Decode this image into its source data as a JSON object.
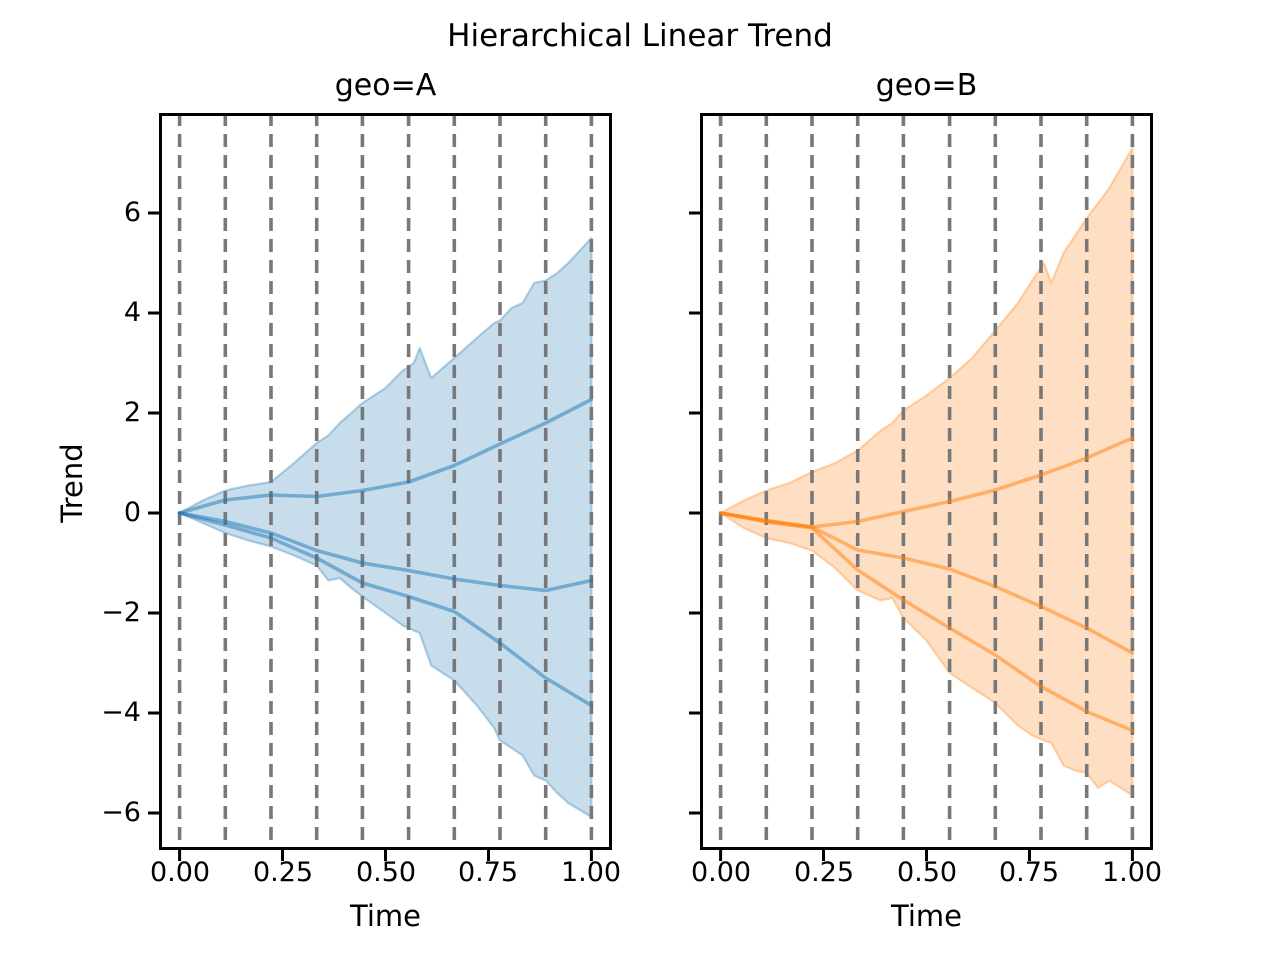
{
  "figure": {
    "suptitle": "Hierarchical Linear Trend",
    "background_color": "#ffffff",
    "grid_color": "#787878",
    "spine_color": "#000000"
  },
  "chart_data": [
    {
      "type": "area",
      "title": "geo=A",
      "xlabel": "Time",
      "ylabel": "Trend",
      "color": "#1f77b4",
      "fill_alpha": 0.25,
      "line_alpha": 0.5,
      "xlim": [
        -0.05,
        1.05
      ],
      "ylim": [
        -6.74,
        8.0
      ],
      "grid": "vertical-dashed",
      "legend": "none",
      "xticks": {
        "values": [
          0,
          0.25,
          0.5,
          0.75,
          1.0
        ],
        "labels": [
          "0.00",
          "0.25",
          "0.50",
          "0.75",
          "1.00"
        ],
        "show_labels": true
      },
      "yticks": {
        "values": [
          -6,
          -4,
          -2,
          0,
          2,
          4,
          6
        ],
        "labels": [
          "−6",
          "−4",
          "−2",
          "0",
          "2",
          "4",
          "6"
        ],
        "show_labels": true
      },
      "changepoints": [
        0,
        0.111,
        0.222,
        0.333,
        0.444,
        0.556,
        0.667,
        0.778,
        0.889,
        1.0
      ],
      "band": {
        "t": [
          0,
          0.056,
          0.111,
          0.167,
          0.222,
          0.278,
          0.333,
          0.361,
          0.389,
          0.417,
          0.444,
          0.5,
          0.542,
          0.569,
          0.583,
          0.611,
          0.667,
          0.722,
          0.764,
          0.778,
          0.806,
          0.833,
          0.861,
          0.889,
          0.917,
          0.944,
          1.0
        ],
        "upper": [
          0,
          0.25,
          0.45,
          0.55,
          0.62,
          1.0,
          1.4,
          1.55,
          1.8,
          2.0,
          2.2,
          2.5,
          2.85,
          3.0,
          3.3,
          2.7,
          3.1,
          3.5,
          3.8,
          3.85,
          4.1,
          4.2,
          4.6,
          4.65,
          4.8,
          5.0,
          5.5
        ],
        "lower": [
          0,
          -0.2,
          -0.4,
          -0.55,
          -0.67,
          -0.85,
          -1.05,
          -1.35,
          -1.3,
          -1.5,
          -1.67,
          -2.0,
          -2.25,
          -2.35,
          -2.4,
          -3.05,
          -3.35,
          -3.85,
          -4.3,
          -4.55,
          -4.7,
          -4.85,
          -5.25,
          -5.35,
          -5.6,
          -5.8,
          -6.08
        ]
      },
      "lines": [
        {
          "name": "sample-1",
          "t": [
            0,
            0.111,
            0.222,
            0.333,
            0.444,
            0.556,
            0.667,
            0.778,
            0.889,
            1.0
          ],
          "y": [
            0,
            0.26,
            0.36,
            0.33,
            0.45,
            0.62,
            0.95,
            1.38,
            1.8,
            2.27
          ]
        },
        {
          "name": "sample-2",
          "t": [
            0,
            0.111,
            0.222,
            0.333,
            0.444,
            0.556,
            0.667,
            0.778,
            0.889,
            1.0
          ],
          "y": [
            0,
            -0.17,
            -0.4,
            -0.75,
            -1.0,
            -1.15,
            -1.32,
            -1.45,
            -1.55,
            -1.35
          ]
        },
        {
          "name": "sample-3",
          "t": [
            0,
            0.111,
            0.222,
            0.333,
            0.444,
            0.556,
            0.667,
            0.778,
            0.889,
            1.0
          ],
          "y": [
            0,
            -0.24,
            -0.5,
            -0.9,
            -1.4,
            -1.67,
            -1.97,
            -2.6,
            -3.3,
            -3.85
          ]
        }
      ]
    },
    {
      "type": "area",
      "title": "geo=B",
      "xlabel": "Time",
      "ylabel": "",
      "color": "#ff7f0e",
      "fill_alpha": 0.25,
      "line_alpha": 0.5,
      "xlim": [
        -0.05,
        1.05
      ],
      "ylim": [
        -6.74,
        8.0
      ],
      "grid": "vertical-dashed",
      "legend": "none",
      "xticks": {
        "values": [
          0,
          0.25,
          0.5,
          0.75,
          1.0
        ],
        "labels": [
          "0.00",
          "0.25",
          "0.50",
          "0.75",
          "1.00"
        ],
        "show_labels": true
      },
      "yticks": {
        "values": [
          -6,
          -4,
          -2,
          0,
          2,
          4,
          6
        ],
        "labels": [
          "−6",
          "−4",
          "−2",
          "0",
          "2",
          "4",
          "6"
        ],
        "show_labels": false
      },
      "changepoints": [
        0,
        0.111,
        0.222,
        0.333,
        0.444,
        0.556,
        0.667,
        0.778,
        0.889,
        1.0
      ],
      "band": {
        "t": [
          0,
          0.056,
          0.111,
          0.167,
          0.222,
          0.278,
          0.333,
          0.389,
          0.417,
          0.444,
          0.5,
          0.556,
          0.611,
          0.667,
          0.722,
          0.757,
          0.785,
          0.803,
          0.833,
          0.861,
          0.889,
          0.917,
          0.944,
          1.0
        ],
        "upper": [
          0,
          0.25,
          0.45,
          0.6,
          0.82,
          1.0,
          1.25,
          1.65,
          1.8,
          2.05,
          2.35,
          2.7,
          3.1,
          3.65,
          4.2,
          4.65,
          5.0,
          4.6,
          5.2,
          5.55,
          5.9,
          6.2,
          6.5,
          7.3
        ],
        "lower": [
          0,
          -0.3,
          -0.5,
          -0.6,
          -0.75,
          -1.1,
          -1.55,
          -1.75,
          -1.7,
          -2.1,
          -2.55,
          -3.2,
          -3.5,
          -3.8,
          -4.25,
          -4.45,
          -4.55,
          -4.6,
          -5.05,
          -5.15,
          -5.2,
          -5.5,
          -5.35,
          -5.65
        ]
      },
      "lines": [
        {
          "name": "sample-1",
          "t": [
            0,
            0.111,
            0.222,
            0.333,
            0.444,
            0.556,
            0.667,
            0.778,
            0.889,
            1.0
          ],
          "y": [
            0,
            -0.15,
            -0.28,
            -0.17,
            0.03,
            0.23,
            0.46,
            0.76,
            1.1,
            1.5
          ]
        },
        {
          "name": "sample-2",
          "t": [
            0,
            0.111,
            0.222,
            0.333,
            0.444,
            0.556,
            0.667,
            0.778,
            0.889,
            1.0
          ],
          "y": [
            0,
            -0.16,
            -0.28,
            -0.74,
            -0.9,
            -1.12,
            -1.47,
            -1.87,
            -2.3,
            -2.8
          ]
        },
        {
          "name": "sample-3",
          "t": [
            0,
            0.111,
            0.222,
            0.333,
            0.444,
            0.556,
            0.667,
            0.778,
            0.889,
            1.0
          ],
          "y": [
            0,
            -0.18,
            -0.3,
            -1.14,
            -1.74,
            -2.3,
            -2.84,
            -3.47,
            -3.97,
            -4.35
          ]
        }
      ]
    }
  ]
}
